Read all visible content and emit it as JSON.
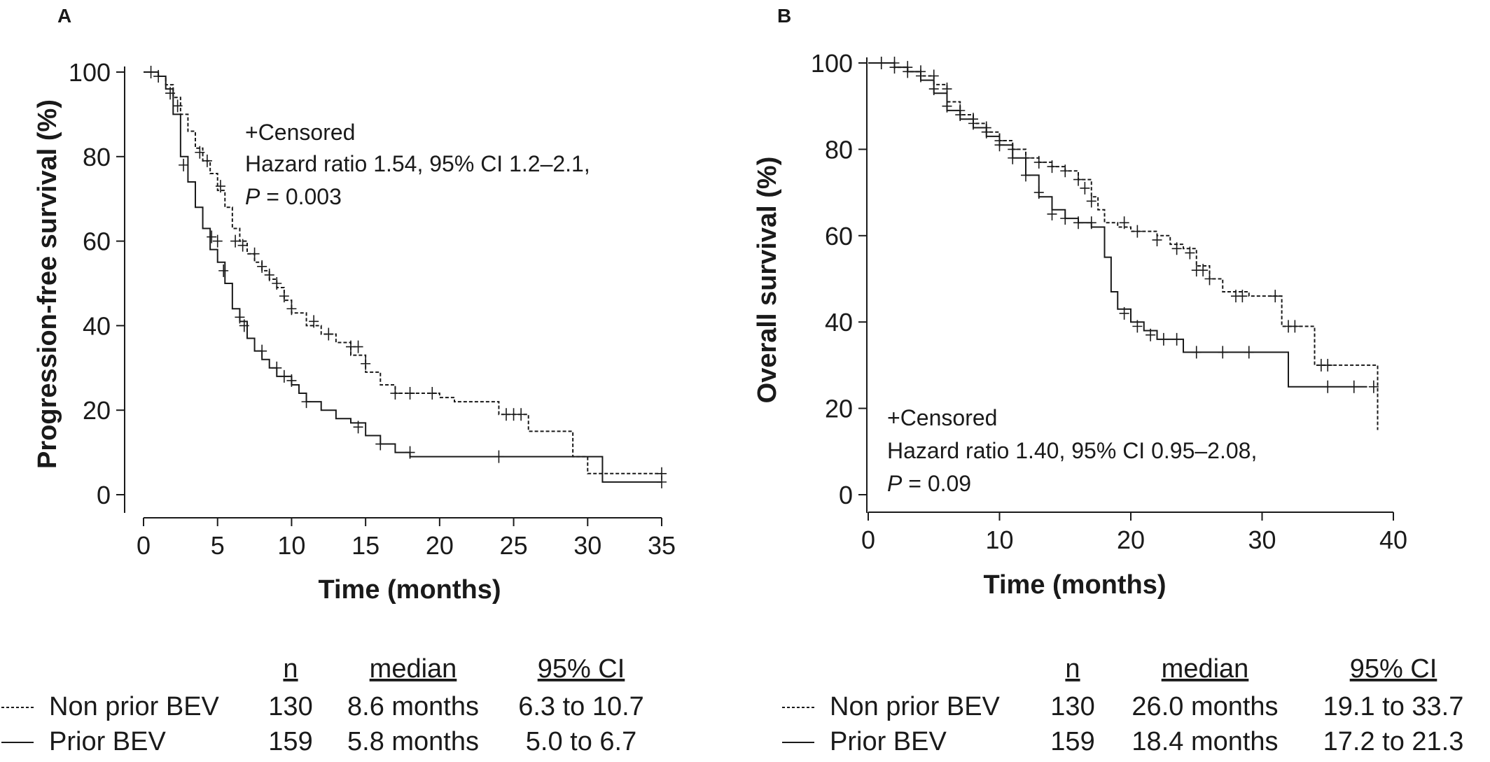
{
  "chart_data": [
    {
      "type": "line",
      "panel": "A",
      "xlabel": "Time (months)",
      "ylabel": "Progression-free survival (%)",
      "xlim": [
        0,
        35
      ],
      "ylim": [
        0,
        100
      ],
      "xticks": [
        "0",
        "5",
        "10",
        "15",
        "20",
        "25",
        "30",
        "35"
      ],
      "yticks": [
        "0",
        "20",
        "40",
        "60",
        "80",
        "100"
      ],
      "grid": false,
      "annotation": {
        "line1": "+Censored",
        "line2": "Hazard ratio 1.54, 95% CI 1.2–2.1,",
        "line3_italic": "P",
        "line3_rest": " = 0.003"
      },
      "table": {
        "headers": {
          "n": "n",
          "median": "median",
          "ci": "95% CI"
        },
        "rows": [
          {
            "label": "Non prior BEV",
            "style": "dashed",
            "n": "130",
            "median": "8.6 months",
            "ci": "6.3 to 10.7"
          },
          {
            "label": "Prior BEV",
            "style": "solid",
            "n": "159",
            "median": "5.8 months",
            "ci": "5.0 to 6.7"
          }
        ]
      },
      "series": [
        {
          "name": "Non prior BEV",
          "style": "dashed",
          "points": [
            [
              0,
              100
            ],
            [
              1,
              99
            ],
            [
              1.5,
              97
            ],
            [
              2,
              94
            ],
            [
              2.5,
              90
            ],
            [
              3,
              86
            ],
            [
              3.5,
              82
            ],
            [
              4,
              79
            ],
            [
              4.5,
              76
            ],
            [
              5,
              72
            ],
            [
              5.5,
              68
            ],
            [
              6,
              63
            ],
            [
              6.5,
              60
            ],
            [
              7,
              57
            ],
            [
              7.5,
              55
            ],
            [
              8,
              53
            ],
            [
              8.5,
              51
            ],
            [
              9,
              49
            ],
            [
              9.5,
              46
            ],
            [
              10,
              43
            ],
            [
              11,
              40
            ],
            [
              12,
              38
            ],
            [
              13,
              36
            ],
            [
              14,
              33
            ],
            [
              15,
              29
            ],
            [
              16,
              26
            ],
            [
              17,
              24
            ],
            [
              18,
              24
            ],
            [
              20,
              23
            ],
            [
              21,
              22
            ],
            [
              24,
              19
            ],
            [
              26,
              15
            ],
            [
              28,
              15
            ],
            [
              29,
              9
            ],
            [
              30,
              5
            ],
            [
              35,
              5
            ]
          ],
          "censored": [
            [
              1,
              99
            ],
            [
              2.3,
              92
            ],
            [
              3.8,
              81
            ],
            [
              4.3,
              79
            ],
            [
              5.2,
              73
            ],
            [
              6.2,
              60
            ],
            [
              6.7,
              59
            ],
            [
              7.5,
              57
            ],
            [
              8,
              54
            ],
            [
              8.5,
              52
            ],
            [
              9,
              50
            ],
            [
              9.5,
              47
            ],
            [
              10,
              44
            ],
            [
              11.5,
              41
            ],
            [
              12.5,
              38
            ],
            [
              14,
              35
            ],
            [
              14.5,
              35
            ],
            [
              15,
              31
            ],
            [
              17,
              24
            ],
            [
              18,
              24
            ],
            [
              19.5,
              24
            ],
            [
              24.5,
              19
            ],
            [
              25,
              19
            ],
            [
              25.5,
              19
            ],
            [
              35,
              5
            ]
          ]
        },
        {
          "name": "Prior BEV",
          "style": "solid",
          "points": [
            [
              0,
              100
            ],
            [
              1,
              99
            ],
            [
              1.5,
              96
            ],
            [
              2,
              90
            ],
            [
              2.5,
              80
            ],
            [
              3,
              74
            ],
            [
              3.5,
              68
            ],
            [
              4,
              63
            ],
            [
              4.5,
              58
            ],
            [
              5,
              55
            ],
            [
              5.5,
              50
            ],
            [
              6,
              44
            ],
            [
              6.5,
              41
            ],
            [
              7,
              37
            ],
            [
              7.5,
              34
            ],
            [
              8,
              32
            ],
            [
              8.5,
              30
            ],
            [
              9,
              28
            ],
            [
              10,
              26
            ],
            [
              10.5,
              24
            ],
            [
              11,
              22
            ],
            [
              12,
              20
            ],
            [
              13,
              18
            ],
            [
              14,
              17
            ],
            [
              15,
              14
            ],
            [
              16,
              12
            ],
            [
              17,
              10
            ],
            [
              18,
              9
            ],
            [
              30,
              9
            ],
            [
              31,
              3
            ],
            [
              35,
              3
            ]
          ],
          "censored": [
            [
              0.5,
              100
            ],
            [
              1.8,
              95
            ],
            [
              2.7,
              78
            ],
            [
              4.6,
              61
            ],
            [
              5,
              60
            ],
            [
              5.4,
              53
            ],
            [
              6.5,
              42
            ],
            [
              6.8,
              40
            ],
            [
              8,
              34
            ],
            [
              9,
              30
            ],
            [
              9.5,
              28
            ],
            [
              10,
              27
            ],
            [
              11,
              22
            ],
            [
              14.5,
              16
            ],
            [
              16,
              12
            ],
            [
              18,
              10
            ],
            [
              24,
              9
            ],
            [
              35,
              3
            ]
          ]
        }
      ]
    },
    {
      "type": "line",
      "panel": "B",
      "xlabel": "Time (months)",
      "ylabel": "Overall survival (%)",
      "xlim": [
        0,
        40
      ],
      "ylim": [
        0,
        100
      ],
      "xticks": [
        "0",
        "10",
        "20",
        "30",
        "40"
      ],
      "yticks": [
        "0",
        "20",
        "40",
        "60",
        "80",
        "100"
      ],
      "grid": false,
      "annotation": {
        "line1": "+Censored",
        "line2": "Hazard ratio 1.40, 95% CI 0.95–2.08,",
        "line3_italic": "P",
        "line3_rest": " = 0.09"
      },
      "table": {
        "headers": {
          "n": "n",
          "median": "median",
          "ci": "95% CI"
        },
        "rows": [
          {
            "label": "Non prior BEV",
            "style": "dashed",
            "n": "130",
            "median": "26.0 months",
            "ci": "19.1 to 33.7"
          },
          {
            "label": "Prior BEV",
            "style": "solid",
            "n": "159",
            "median": "18.4 months",
            "ci": "17.2 to 21.3"
          }
        ]
      },
      "series": [
        {
          "name": "Non prior BEV",
          "style": "dashed",
          "points": [
            [
              0,
              100
            ],
            [
              2,
              99
            ],
            [
              3,
              98
            ],
            [
              4,
              97
            ],
            [
              5,
              95
            ],
            [
              6,
              91
            ],
            [
              7,
              88
            ],
            [
              8,
              86
            ],
            [
              9,
              84
            ],
            [
              10,
              82
            ],
            [
              11,
              80
            ],
            [
              12,
              78
            ],
            [
              13,
              77
            ],
            [
              14,
              76
            ],
            [
              15,
              75
            ],
            [
              16,
              73
            ],
            [
              17,
              69
            ],
            [
              17.5,
              66
            ],
            [
              18,
              63
            ],
            [
              19,
              62
            ],
            [
              20,
              61
            ],
            [
              22,
              60
            ],
            [
              23,
              58
            ],
            [
              24,
              57
            ],
            [
              25,
              53
            ],
            [
              26,
              50
            ],
            [
              27,
              47
            ],
            [
              29,
              46
            ],
            [
              31,
              46
            ],
            [
              31.5,
              39
            ],
            [
              33,
              39
            ],
            [
              34,
              30
            ],
            [
              38.5,
              30
            ],
            [
              38.8,
              15
            ]
          ],
          "censored": [
            [
              1,
              100
            ],
            [
              2,
              100
            ],
            [
              3,
              99
            ],
            [
              4,
              98
            ],
            [
              5,
              97
            ],
            [
              6,
              94
            ],
            [
              7,
              89
            ],
            [
              8,
              87
            ],
            [
              9,
              85
            ],
            [
              10,
              82
            ],
            [
              11,
              80
            ],
            [
              12,
              78
            ],
            [
              13,
              77
            ],
            [
              14,
              76
            ],
            [
              15,
              75
            ],
            [
              16,
              73
            ],
            [
              16.5,
              71
            ],
            [
              17,
              68
            ],
            [
              19.5,
              63
            ],
            [
              20.5,
              61
            ],
            [
              22,
              59
            ],
            [
              23.5,
              57
            ],
            [
              24.5,
              56
            ],
            [
              25,
              52
            ],
            [
              25.5,
              52
            ],
            [
              26,
              50
            ],
            [
              28,
              46
            ],
            [
              28.5,
              46
            ],
            [
              31,
              46
            ],
            [
              32,
              39
            ],
            [
              32.5,
              39
            ],
            [
              34.5,
              30
            ],
            [
              35,
              30
            ]
          ]
        },
        {
          "name": "Prior BEV",
          "style": "solid",
          "points": [
            [
              0,
              100
            ],
            [
              2,
              99
            ],
            [
              3,
              98
            ],
            [
              4,
              96
            ],
            [
              5,
              93
            ],
            [
              6,
              89
            ],
            [
              7,
              87
            ],
            [
              8,
              85
            ],
            [
              9,
              83
            ],
            [
              10,
              81
            ],
            [
              11,
              78
            ],
            [
              12,
              74
            ],
            [
              13,
              69
            ],
            [
              14,
              66
            ],
            [
              15,
              64
            ],
            [
              16,
              63
            ],
            [
              17,
              62
            ],
            [
              18,
              55
            ],
            [
              18.5,
              47
            ],
            [
              19,
              43
            ],
            [
              20,
              40
            ],
            [
              21,
              38
            ],
            [
              22,
              36
            ],
            [
              23,
              36
            ],
            [
              24,
              33
            ],
            [
              31,
              33
            ],
            [
              32,
              25
            ],
            [
              38,
              25
            ]
          ],
          "censored": [
            [
              1,
              100
            ],
            [
              2,
              99
            ],
            [
              3,
              98
            ],
            [
              4,
              97
            ],
            [
              5,
              94
            ],
            [
              6,
              90
            ],
            [
              7,
              88
            ],
            [
              8,
              86
            ],
            [
              9,
              84
            ],
            [
              10,
              81
            ],
            [
              11,
              78
            ],
            [
              12,
              74
            ],
            [
              13,
              70
            ],
            [
              14,
              65
            ],
            [
              15,
              64
            ],
            [
              16,
              63
            ],
            [
              17,
              63
            ],
            [
              19.5,
              42
            ],
            [
              20.5,
              39
            ],
            [
              21.5,
              37
            ],
            [
              22.5,
              36
            ],
            [
              23.5,
              36
            ],
            [
              25,
              33
            ],
            [
              27,
              33
            ],
            [
              29,
              33
            ],
            [
              35,
              25
            ],
            [
              37,
              25
            ],
            [
              38.5,
              25
            ]
          ]
        }
      ]
    }
  ]
}
